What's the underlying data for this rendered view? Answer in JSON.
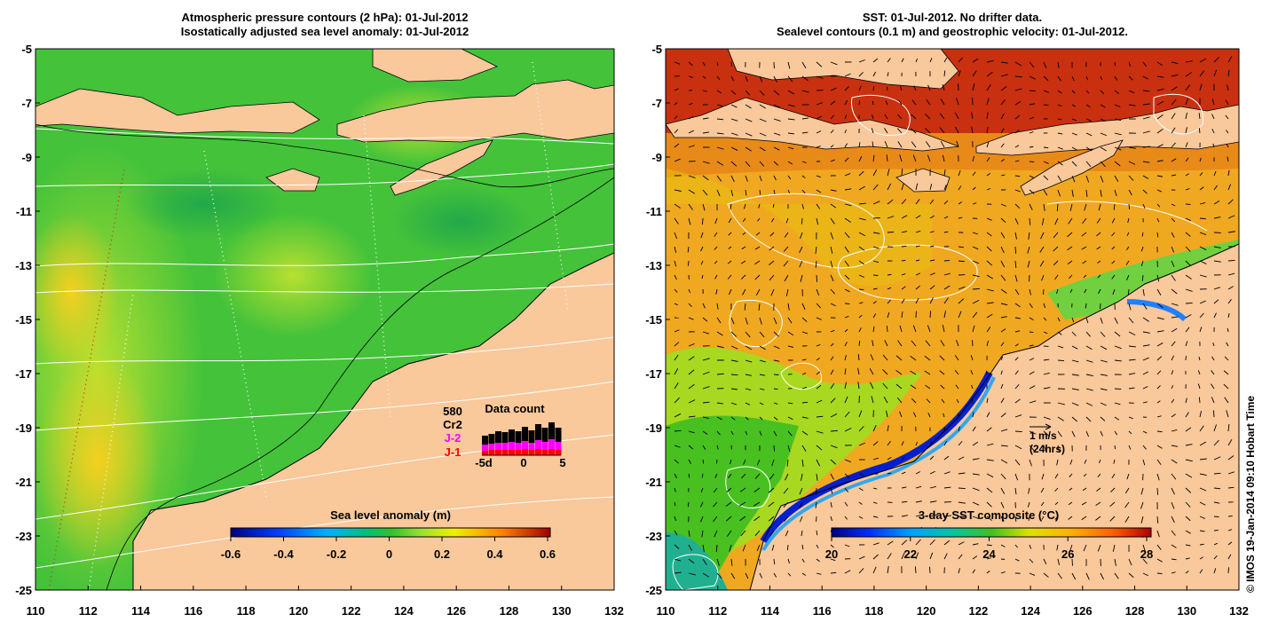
{
  "left_panel": {
    "title_line1": "Atmospheric pressure contours (2 hPa): 01-Jul-2012",
    "title_line2": "Isostatically adjusted sea level anomaly: 01-Jul-2012",
    "colorbar_label": "Sea level anomaly (m)",
    "colorbar_ticks": [
      "-0.6",
      "-0.4",
      "-0.2",
      "0",
      "0.2",
      "0.4",
      "0.6"
    ],
    "data_count": {
      "title": "Data count",
      "max_label": "580",
      "series": [
        {
          "name": "Cr2",
          "color": "#000000"
        },
        {
          "name": "J-2",
          "color": "#ff00ff"
        },
        {
          "name": "J-1",
          "color": "#ff0000"
        }
      ],
      "axis_ticks": [
        "-5d",
        "0",
        "5"
      ]
    }
  },
  "right_panel": {
    "title_line1": "SST: 01-Jul-2012. No drifter data.",
    "title_line2": "Sealevel contours (0.1 m) and geostrophic velocity: 01-Jul-2012.",
    "colorbar_label": "3-day SST composite (°C)",
    "colorbar_ticks": [
      "20",
      "22",
      "24",
      "26",
      "28"
    ],
    "velocity_scale_label": "1 m/s",
    "velocity_scale_sub": "(24hrs)"
  },
  "y_axis_ticks": [
    "-5",
    "-7",
    "-9",
    "-11",
    "-13",
    "-15",
    "-17",
    "-19",
    "-21",
    "-23",
    "-25"
  ],
  "x_axis_ticks": [
    "110",
    "112",
    "114",
    "116",
    "118",
    "120",
    "122",
    "124",
    "126",
    "128",
    "130",
    "132"
  ],
  "credit": "© IMOS 19-Jan-2014 09:10 Hobart Time",
  "colors": {
    "land": "#f9c89b",
    "sea_green": "#3fc23a",
    "sst_orange": "#f5a623"
  }
}
